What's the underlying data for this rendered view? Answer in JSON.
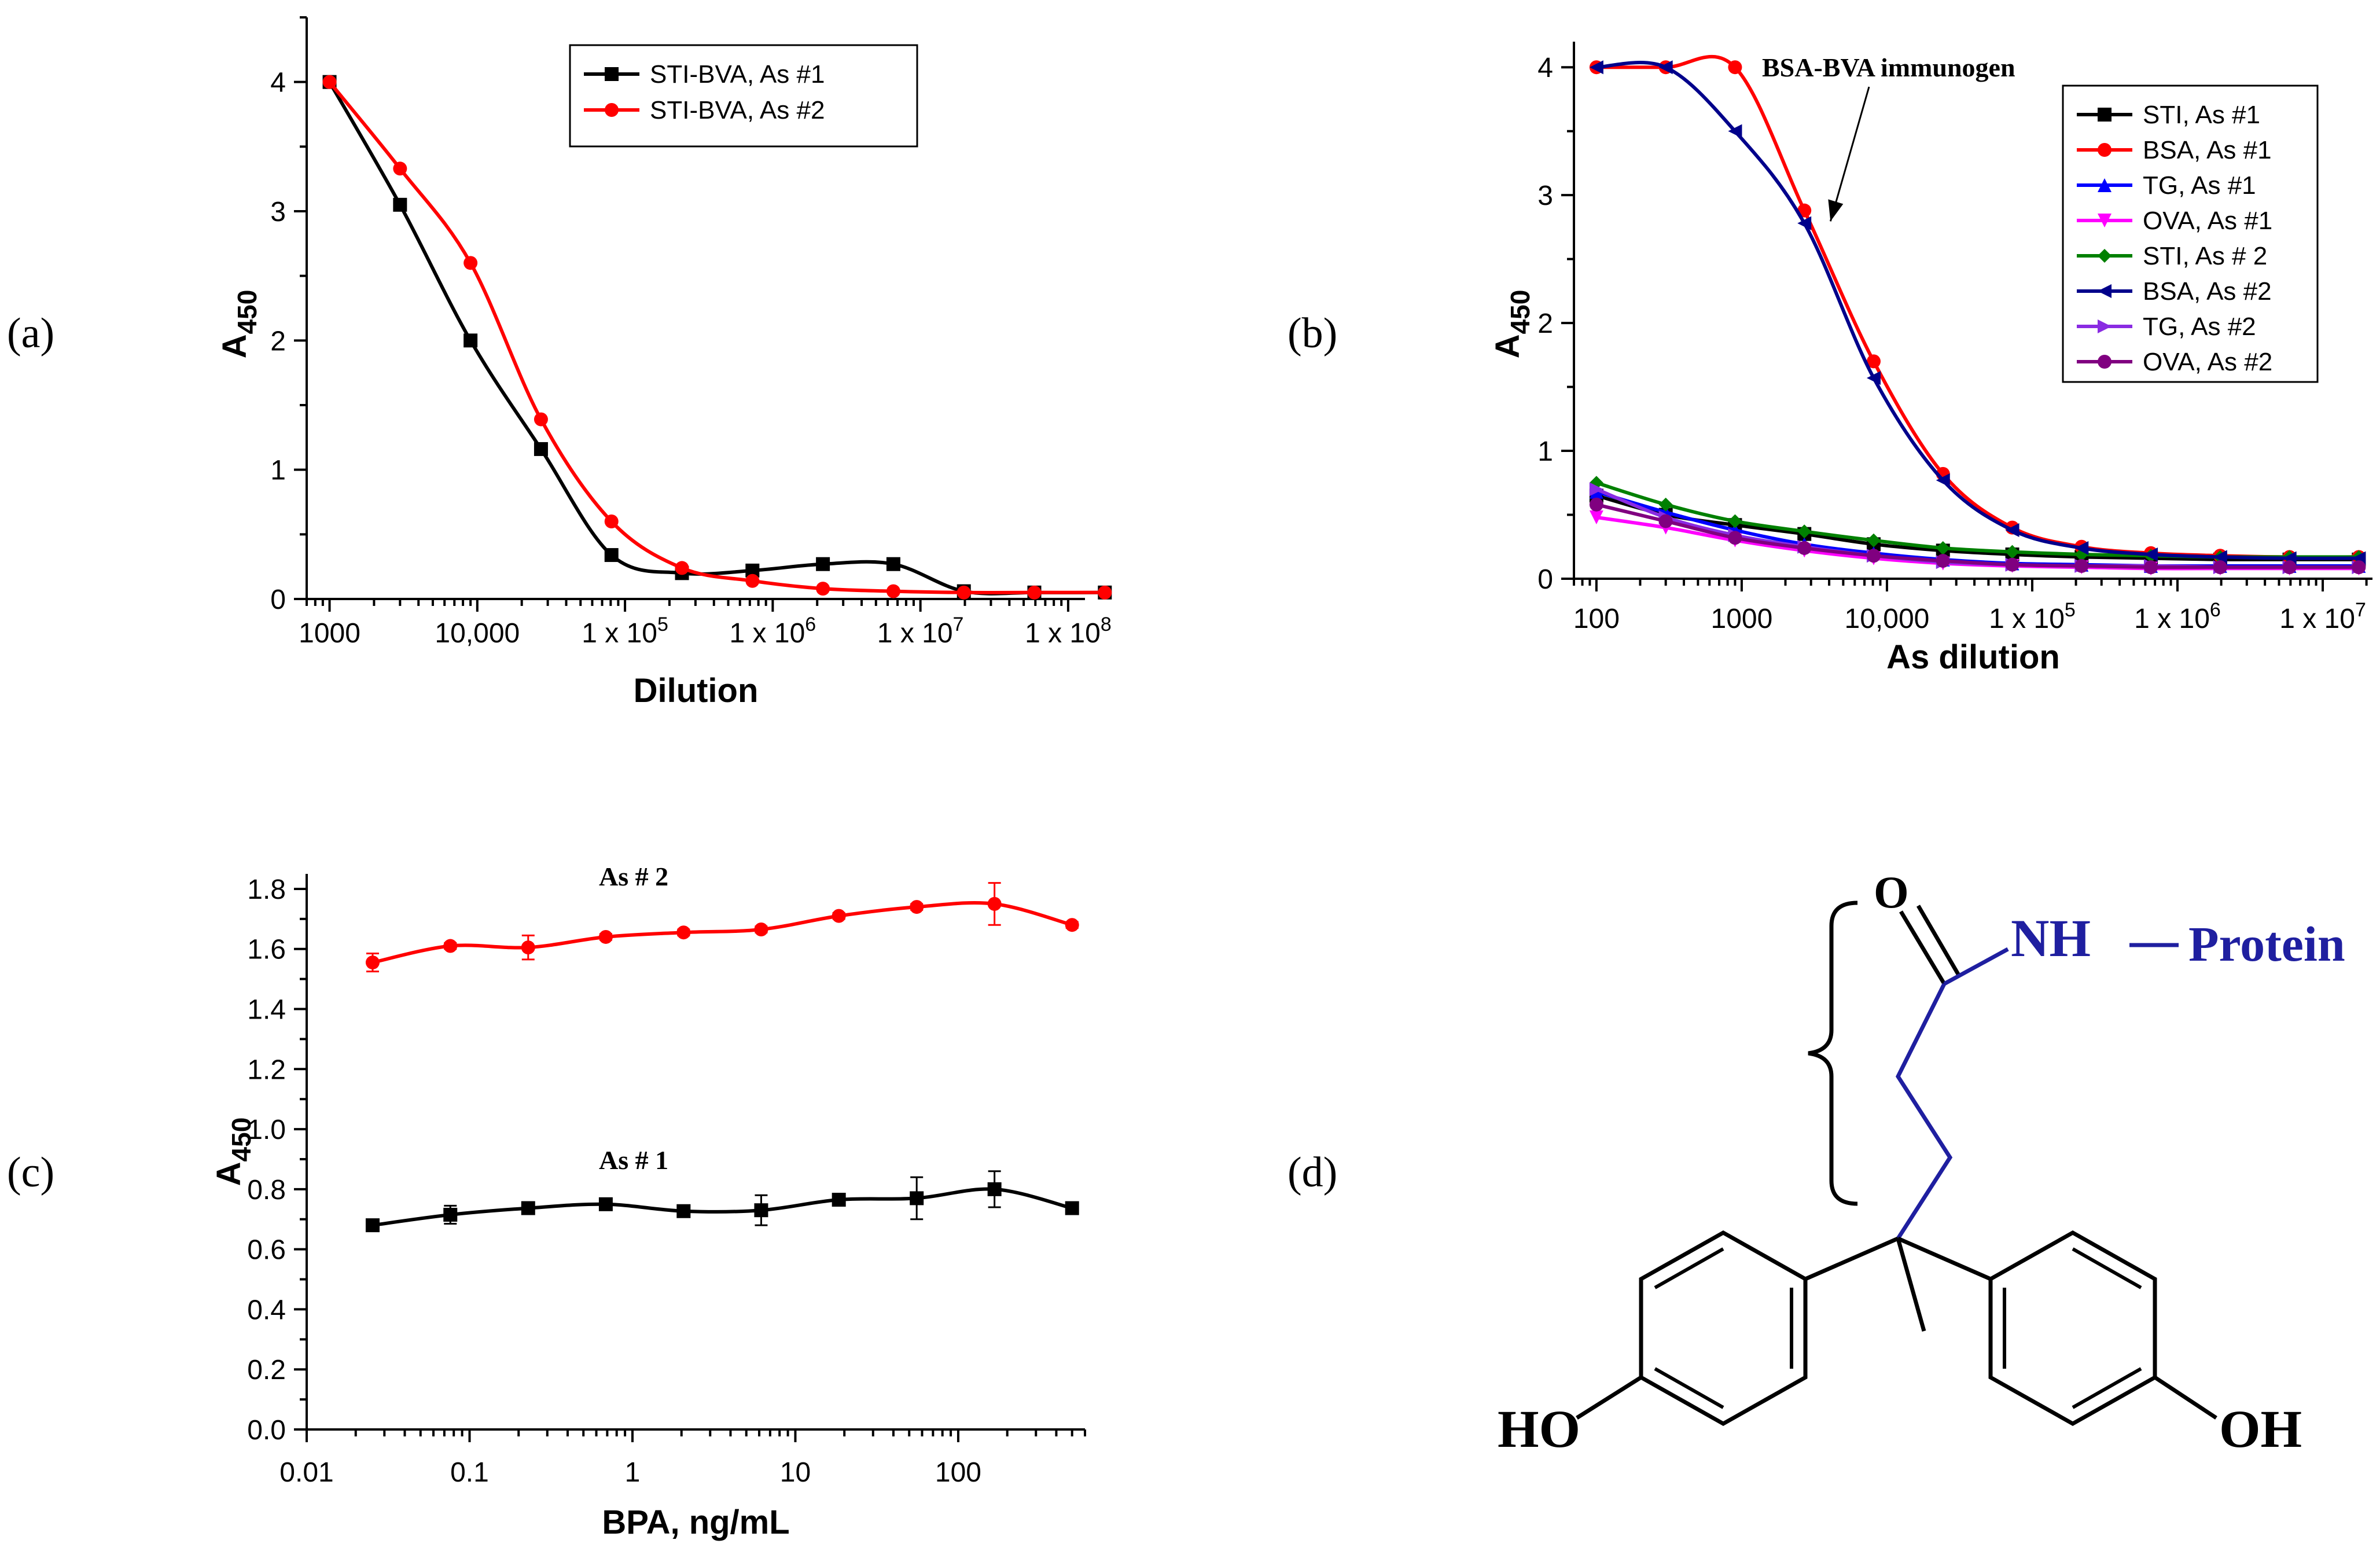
{
  "panels": {
    "a": "(a)",
    "b": "(b)",
    "c": "(c)",
    "d": "(d)"
  },
  "chart_data": [
    {
      "id": "a",
      "type": "line",
      "title": "",
      "xlabel": "Dilution",
      "ylabel": "A",
      "ylabel_sub": "450",
      "xscale": "log",
      "xlim": [
        700,
        130000000
      ],
      "ylim": [
        0,
        4.5
      ],
      "xticks": [
        {
          "value": 1000,
          "label": "1000"
        },
        {
          "value": 10000,
          "label": "10,000"
        },
        {
          "value": 100000,
          "label": "1 x 10",
          "sup": "5"
        },
        {
          "value": 1000000,
          "label": "1 x 10",
          "sup": "6"
        },
        {
          "value": 10000000,
          "label": "1 x 10",
          "sup": "7"
        },
        {
          "value": 100000000,
          "label": "1 x 10",
          "sup": "8"
        }
      ],
      "yticks": [
        0,
        1,
        2,
        3,
        4
      ],
      "legend_position": "top-right",
      "series": [
        {
          "name": "STI-BVA, As #1",
          "color": "#000000",
          "marker": "square",
          "x": [
            1000,
            3000,
            9000,
            27000,
            81000,
            243000,
            729000,
            2187000,
            6561000,
            19683000,
            59049000,
            177147000
          ],
          "y": [
            4.0,
            3.05,
            2.0,
            1.16,
            0.34,
            0.2,
            0.22,
            0.27,
            0.27,
            0.06,
            0.05,
            0.05
          ]
        },
        {
          "name": "STI-BVA, As #2",
          "color": "#ff0000",
          "marker": "circle",
          "x": [
            1000,
            3000,
            9000,
            27000,
            81000,
            243000,
            729000,
            2187000,
            6561000,
            19683000,
            59049000,
            177147000
          ],
          "y": [
            4.0,
            3.33,
            2.6,
            1.39,
            0.6,
            0.24,
            0.14,
            0.08,
            0.06,
            0.05,
            0.05,
            0.05
          ]
        }
      ]
    },
    {
      "id": "b",
      "type": "line",
      "title": "",
      "xlabel": "As dilution",
      "ylabel": "A",
      "ylabel_sub": "450",
      "xscale": "log",
      "xlim": [
        70,
        22000000
      ],
      "ylim": [
        0,
        4.2
      ],
      "xticks": [
        {
          "value": 100,
          "label": "100"
        },
        {
          "value": 1000,
          "label": "1000"
        },
        {
          "value": 10000,
          "label": "10,000"
        },
        {
          "value": 100000,
          "label": "1 x 10",
          "sup": "5"
        },
        {
          "value": 1000000,
          "label": "1 x 10",
          "sup": "6"
        },
        {
          "value": 10000000,
          "label": "1 x 10",
          "sup": "7"
        }
      ],
      "yticks": [
        0,
        1,
        2,
        3,
        4
      ],
      "legend_position": "top-right",
      "annotation": "BSA-BVA immunogen",
      "x": [
        100,
        300,
        900,
        2700,
        8100,
        24300,
        72900,
        218700,
        656100,
        1968300,
        5904900,
        17714700
      ],
      "series": [
        {
          "name": "STI, As #1",
          "color": "#000000",
          "marker": "square",
          "y": [
            0.65,
            0.5,
            0.42,
            0.35,
            0.27,
            0.22,
            0.19,
            0.17,
            0.16,
            0.15,
            0.15,
            0.15
          ]
        },
        {
          "name": "BSA, As #1",
          "color": "#ff0000",
          "marker": "circle",
          "y": [
            4.0,
            4.0,
            4.0,
            2.88,
            1.7,
            0.82,
            0.4,
            0.25,
            0.2,
            0.18,
            0.17,
            0.17
          ]
        },
        {
          "name": "TG, As #1",
          "color": "#0000ff",
          "marker": "triangle-up",
          "y": [
            0.68,
            0.52,
            0.38,
            0.27,
            0.2,
            0.15,
            0.12,
            0.11,
            0.1,
            0.1,
            0.1,
            0.1
          ]
        },
        {
          "name": "OVA, As #1",
          "color": "#ff00ff",
          "marker": "triangle-down",
          "y": [
            0.48,
            0.4,
            0.3,
            0.22,
            0.16,
            0.12,
            0.1,
            0.09,
            0.08,
            0.08,
            0.08,
            0.08
          ]
        },
        {
          "name": "STI, As # 2",
          "color": "#008000",
          "marker": "diamond",
          "y": [
            0.75,
            0.58,
            0.45,
            0.37,
            0.3,
            0.24,
            0.21,
            0.19,
            0.18,
            0.17,
            0.17,
            0.17
          ]
        },
        {
          "name": "BSA, As #2",
          "color": "#00008b",
          "marker": "triangle-left",
          "y": [
            4.0,
            4.0,
            3.5,
            2.78,
            1.57,
            0.77,
            0.38,
            0.24,
            0.19,
            0.17,
            0.16,
            0.16
          ]
        },
        {
          "name": "TG, As #2",
          "color": "#8a2be2",
          "marker": "triangle-right",
          "y": [
            0.7,
            0.48,
            0.34,
            0.25,
            0.18,
            0.13,
            0.11,
            0.1,
            0.1,
            0.09,
            0.09,
            0.09
          ]
        },
        {
          "name": "OVA, As #2",
          "color": "#800080",
          "marker": "circle",
          "y": [
            0.58,
            0.45,
            0.32,
            0.24,
            0.18,
            0.14,
            0.11,
            0.1,
            0.09,
            0.09,
            0.09,
            0.09
          ]
        }
      ]
    },
    {
      "id": "c",
      "type": "line",
      "title": "",
      "xlabel": "BPA, ng/mL",
      "ylabel": "A",
      "ylabel_sub": "450",
      "xscale": "log",
      "xlim": [
        0.01,
        600
      ],
      "ylim": [
        0,
        1.85
      ],
      "xticks": [
        {
          "value": 0.01,
          "label": "0.01"
        },
        {
          "value": 0.1,
          "label": "0.1"
        },
        {
          "value": 1,
          "label": "1"
        },
        {
          "value": 10,
          "label": "10"
        },
        {
          "value": 100,
          "label": "100"
        }
      ],
      "yticks": [
        "0.0",
        "0.2",
        "0.4",
        "0.6",
        "0.8",
        "1.0",
        "1.2",
        "1.4",
        "1.6",
        "1.8"
      ],
      "annotations": [
        "As # 2",
        "As # 1"
      ],
      "series": [
        {
          "name": "As # 2",
          "color": "#ff0000",
          "marker": "circle",
          "x": [
            0.0254,
            0.0762,
            0.229,
            0.686,
            2.06,
            6.17,
            18.5,
            55.6,
            167,
            500
          ],
          "y": [
            1.555,
            1.61,
            1.605,
            1.64,
            1.655,
            1.665,
            1.71,
            1.74,
            1.75,
            1.68
          ],
          "err": [
            0.03,
            0.01,
            0.04,
            0.01,
            0.01,
            0.01,
            0.01,
            0.01,
            0.07,
            0.01
          ]
        },
        {
          "name": "As # 1",
          "color": "#000000",
          "marker": "square",
          "x": [
            0.0254,
            0.0762,
            0.229,
            0.686,
            2.06,
            6.17,
            18.5,
            55.6,
            167,
            500
          ],
          "y": [
            0.68,
            0.715,
            0.737,
            0.75,
            0.727,
            0.73,
            0.765,
            0.77,
            0.8,
            0.737
          ],
          "err": [
            0.01,
            0.03,
            0.02,
            0.01,
            0.01,
            0.05,
            0.02,
            0.07,
            0.06,
            0.01
          ]
        }
      ]
    }
  ],
  "structure": {
    "carbonyl_o": "O",
    "nh": "NH",
    "protein": "Protein",
    "ho_left": "HO",
    "oh_right": "OH"
  }
}
